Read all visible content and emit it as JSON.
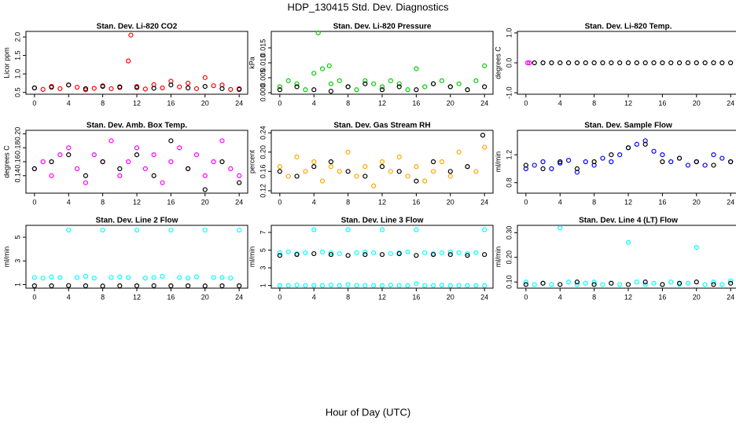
{
  "title": "HDP_130415  Std. Dev. Diagnostics",
  "xlabel": "Hour of Day (UTC)",
  "chart_data": [
    {
      "type": "scatter",
      "title": "Stan. Dev. Li-820 CO2",
      "ylabel": "Licor ppm",
      "xlim": [
        -1,
        25
      ],
      "xticks": [
        0,
        4,
        8,
        12,
        16,
        20,
        24
      ],
      "ylim": [
        0.45,
        2.15
      ],
      "yticks": [
        0.5,
        {
          "value": 1,
          "label": "1.0"
        },
        1.5,
        {
          "value": 2,
          "label": "2.0"
        }
      ],
      "series": [
        {
          "color": "#ff0000",
          "x": [
            0,
            1,
            2,
            3,
            4,
            5,
            6,
            7,
            8,
            9,
            10,
            11,
            11.3,
            12,
            13,
            14,
            15,
            16,
            17,
            18,
            19,
            20,
            21,
            22,
            23,
            24
          ],
          "values": [
            0.62,
            0.58,
            0.66,
            0.6,
            0.7,
            0.64,
            0.57,
            0.61,
            0.68,
            0.6,
            0.63,
            1.35,
            2.05,
            0.66,
            0.59,
            0.71,
            0.62,
            0.8,
            0.65,
            0.75,
            0.6,
            0.9,
            0.68,
            0.7,
            0.58,
            0.6
          ]
        },
        {
          "color": "#000000",
          "x": [
            0,
            2,
            4,
            6,
            8,
            10,
            12,
            14,
            16,
            18,
            20,
            22,
            24
          ],
          "values": [
            0.62,
            0.64,
            0.7,
            0.6,
            0.66,
            0.65,
            0.63,
            0.61,
            0.7,
            0.62,
            0.66,
            0.6,
            0.58
          ]
        }
      ]
    },
    {
      "type": "scatter",
      "title": "Stan. Dev. Li-820 Pressure",
      "ylabel": "kPa",
      "xlim": [
        -1,
        25
      ],
      "xticks": [
        0,
        4,
        8,
        12,
        16,
        20,
        24
      ],
      "ylim": [
        -0.0005,
        0.0205
      ],
      "yticks": [
        {
          "value": 0,
          "label": "0.000"
        },
        {
          "value": 0.005,
          "label": "0.005"
        },
        {
          "value": 0.01,
          "label": "0.010"
        },
        {
          "value": 0.015,
          "label": "0.015"
        }
      ],
      "series": [
        {
          "color": "#00cc00",
          "x": [
            0,
            1,
            2,
            3,
            4,
            4.5,
            5,
            5.8,
            6,
            7,
            8,
            9,
            10,
            11,
            12,
            13,
            14,
            15,
            16,
            17,
            18,
            19,
            20,
            21,
            22,
            23,
            24
          ],
          "values": [
            0.002,
            0.004,
            0.003,
            0.001,
            0.0065,
            0.02,
            0.008,
            0.009,
            0.003,
            0.004,
            0.002,
            0.001,
            0.004,
            0.003,
            0.002,
            0.004,
            0.003,
            0.001,
            0.008,
            0.002,
            0.003,
            0.004,
            0.002,
            0.003,
            0.001,
            0.004,
            0.009
          ]
        },
        {
          "color": "#000000",
          "x": [
            0,
            2,
            4,
            6,
            8,
            10,
            12,
            14,
            16,
            18,
            20,
            22,
            24
          ],
          "values": [
            0.001,
            0.002,
            0.001,
            0.0005,
            0.002,
            0.003,
            0.001,
            0.002,
            0.001,
            0.003,
            0.002,
            0.001,
            0.002
          ]
        }
      ]
    },
    {
      "type": "scatter",
      "title": "Stan. Dev. Li-820 Temp.",
      "ylabel": "degrees C",
      "xlim": [
        -1,
        25
      ],
      "xticks": [
        0,
        4,
        8,
        12,
        16,
        20,
        24
      ],
      "ylim": [
        -1.05,
        1.05
      ],
      "yticks": [
        {
          "value": -1,
          "label": "-1.0"
        },
        {
          "value": 0,
          "label": "0.0"
        },
        {
          "value": 1,
          "label": "1.0"
        }
      ],
      "series": [
        {
          "color": "#ff00ff",
          "x": [
            0.2,
            0.4
          ],
          "values": [
            0,
            0
          ]
        },
        {
          "color": "#000000",
          "x": [
            1,
            2,
            3,
            4,
            5,
            6,
            7,
            8,
            9,
            10,
            11,
            12,
            13,
            14,
            15,
            16,
            17,
            18,
            19,
            20,
            21,
            22,
            23,
            24
          ],
          "values": [
            0,
            0,
            0,
            0,
            0,
            0,
            0,
            0,
            0,
            0,
            0,
            0,
            0,
            0,
            0,
            0,
            0,
            0,
            0,
            0,
            0,
            0,
            0,
            0
          ]
        }
      ]
    },
    {
      "type": "scatter",
      "title": "Stan. Dev. Amb. Box Temp.",
      "ylabel": "degrees C",
      "xlim": [
        -1,
        25
      ],
      "xticks": [
        0,
        4,
        8,
        12,
        16,
        20,
        24
      ],
      "ylim": [
        0.115,
        0.205
      ],
      "yticks": [
        0.14,
        0.16,
        0.18,
        {
          "value": 0.2,
          "label": "0.20"
        }
      ],
      "series": [
        {
          "color": "#ff00ff",
          "x": [
            0,
            1,
            2,
            3,
            4,
            5,
            6,
            7,
            8,
            9,
            10,
            11,
            12,
            13,
            14,
            15,
            16,
            17,
            18,
            19,
            20,
            21,
            22,
            23,
            24
          ],
          "values": [
            0.15,
            0.16,
            0.14,
            0.17,
            0.18,
            0.15,
            0.13,
            0.17,
            0.16,
            0.19,
            0.14,
            0.16,
            0.18,
            0.15,
            0.17,
            0.13,
            0.16,
            0.18,
            0.15,
            0.17,
            0.14,
            0.16,
            0.19,
            0.15,
            0.14
          ]
        },
        {
          "color": "#000000",
          "x": [
            0,
            2,
            4,
            6,
            8,
            10,
            12,
            14,
            16,
            18,
            20,
            22,
            24
          ],
          "values": [
            0.15,
            0.16,
            0.17,
            0.14,
            0.16,
            0.15,
            0.17,
            0.14,
            0.19,
            0.15,
            0.12,
            0.16,
            0.13
          ]
        }
      ]
    },
    {
      "type": "scatter",
      "title": "Stan. Dev. Gas Stream RH",
      "ylabel": "percent",
      "xlim": [
        -1,
        25
      ],
      "xticks": [
        0,
        4,
        8,
        12,
        16,
        20,
        24
      ],
      "ylim": [
        0.115,
        0.245
      ],
      "yticks": [
        0.12,
        0.16,
        {
          "value": 0.2,
          "label": "0.20"
        },
        0.24
      ],
      "series": [
        {
          "color": "#ffa500",
          "x": [
            0,
            1,
            2,
            3,
            4,
            5,
            6,
            7,
            8,
            9,
            10,
            11,
            12,
            13,
            14,
            15,
            16,
            17,
            18,
            19,
            20,
            21,
            22,
            23,
            24
          ],
          "values": [
            0.17,
            0.15,
            0.19,
            0.16,
            0.18,
            0.14,
            0.17,
            0.16,
            0.2,
            0.15,
            0.17,
            0.13,
            0.18,
            0.16,
            0.19,
            0.15,
            0.17,
            0.14,
            0.16,
            0.18,
            0.15,
            0.2,
            0.17,
            0.16,
            0.21
          ]
        },
        {
          "color": "#000000",
          "x": [
            0,
            2,
            4,
            6,
            8,
            10,
            12,
            14,
            16,
            18,
            20,
            22,
            23.8
          ],
          "values": [
            0.16,
            0.15,
            0.17,
            0.18,
            0.16,
            0.15,
            0.17,
            0.16,
            0.14,
            0.18,
            0.16,
            0.17,
            0.235
          ]
        }
      ]
    },
    {
      "type": "scatter",
      "title": "Stan. Dev. Sample Flow",
      "ylabel": "ml/min",
      "xlim": [
        -1,
        25
      ],
      "xticks": [
        0,
        4,
        8,
        12,
        16,
        20,
        24
      ],
      "ylim": [
        0.65,
        1.55
      ],
      "yticks": [
        0.8,
        1.2
      ],
      "series": [
        {
          "color": "#0000ff",
          "x": [
            0,
            1,
            2,
            3,
            4,
            5,
            6,
            7,
            8,
            9,
            10,
            11,
            12,
            13,
            14,
            15,
            16,
            17,
            18,
            19,
            20,
            21,
            22,
            23,
            24
          ],
          "values": [
            1.0,
            1.05,
            1.1,
            1.0,
            1.08,
            1.12,
            0.95,
            1.1,
            1.05,
            1.15,
            1.1,
            1.2,
            1.3,
            1.35,
            1.4,
            1.25,
            1.2,
            1.1,
            1.15,
            1.05,
            1.1,
            1.05,
            1.2,
            1.15,
            1.1
          ]
        },
        {
          "color": "#000000",
          "x": [
            0,
            2,
            4,
            6,
            8,
            10,
            12,
            14,
            16,
            18,
            20,
            22,
            24
          ],
          "values": [
            1.05,
            1.0,
            1.1,
            1.0,
            1.1,
            1.2,
            1.3,
            1.35,
            1.1,
            1.15,
            1.1,
            1.05,
            1.1
          ]
        }
      ]
    },
    {
      "type": "scatter",
      "title": "Stan. Dev. Line 2 Flow",
      "ylabel": "ml/min",
      "xlim": [
        -1,
        25
      ],
      "xticks": [
        0,
        4,
        8,
        12,
        16,
        20,
        24
      ],
      "ylim": [
        0.7,
        6.0
      ],
      "yticks": [
        1,
        3,
        5
      ],
      "series": [
        {
          "color": "#00ffff",
          "x": [
            0,
            1,
            2,
            3,
            4,
            5,
            6,
            7,
            8,
            9,
            10,
            11,
            12,
            13,
            14,
            15,
            16,
            17,
            18,
            19,
            20,
            21,
            22,
            23,
            24
          ],
          "values": [
            1.6,
            1.55,
            1.65,
            1.6,
            5.6,
            1.6,
            1.7,
            1.55,
            5.6,
            1.6,
            1.65,
            1.6,
            5.6,
            1.55,
            1.6,
            1.7,
            5.6,
            1.6,
            1.55,
            1.65,
            5.6,
            1.6,
            1.6,
            1.55,
            5.6
          ]
        },
        {
          "color": "#000000",
          "x": [
            0,
            2,
            4,
            6,
            8,
            10,
            12,
            14,
            16,
            18,
            20,
            22,
            24
          ],
          "values": [
            0.9,
            0.9,
            0.92,
            0.9,
            0.88,
            0.9,
            0.9,
            0.91,
            0.9,
            0.9,
            0.89,
            0.9,
            0.9
          ]
        }
      ]
    },
    {
      "type": "scatter",
      "title": "Stan. Dev. Line 3 Flow",
      "ylabel": "ml/min",
      "xlim": [
        -1,
        25
      ],
      "xticks": [
        0,
        4,
        8,
        12,
        16,
        20,
        24
      ],
      "ylim": [
        0.7,
        7.8
      ],
      "yticks": [
        1,
        3,
        5,
        7
      ],
      "series": [
        {
          "color": "#00ffff",
          "x": [
            0,
            1,
            2,
            3,
            4,
            5,
            6,
            7,
            8,
            9,
            10,
            11,
            12,
            13,
            14,
            15,
            16,
            17,
            18,
            19,
            20,
            21,
            22,
            23,
            24
          ],
          "values": [
            1.0,
            1.0,
            1.05,
            1.0,
            1.0,
            1.0,
            1.05,
            1.0,
            1.1,
            1.0,
            1.0,
            1.0,
            1.0,
            1.05,
            1.0,
            1.0,
            1.2,
            1.0,
            1.0,
            1.05,
            1.0,
            1.0,
            1.0,
            1.0,
            1.0
          ]
        },
        {
          "color": "#00ffff",
          "x": [
            0,
            1,
            2,
            3,
            4,
            5,
            6,
            7,
            8,
            9,
            10,
            11,
            12,
            13,
            14,
            15,
            16,
            17,
            18,
            19,
            20,
            21,
            22,
            23,
            24
          ],
          "values": [
            4.7,
            4.8,
            4.6,
            4.7,
            7.3,
            4.8,
            4.7,
            4.6,
            7.3,
            4.7,
            4.8,
            4.7,
            7.3,
            4.6,
            4.7,
            4.8,
            7.3,
            4.7,
            4.6,
            4.7,
            4.8,
            4.7,
            4.6,
            4.7,
            7.3
          ]
        },
        {
          "color": "#000000",
          "x": [
            0,
            2,
            4,
            6,
            8,
            10,
            12,
            14,
            16,
            18,
            20,
            22,
            24
          ],
          "values": [
            4.4,
            4.5,
            4.6,
            4.5,
            4.4,
            4.5,
            4.5,
            4.6,
            4.4,
            4.5,
            4.5,
            4.4,
            4.5
          ]
        }
      ]
    },
    {
      "type": "scatter",
      "title": "Stan. Dev. Line 4 (LT) Flow",
      "ylabel": "ml/min",
      "xlim": [
        -1,
        25
      ],
      "xticks": [
        0,
        4,
        8,
        12,
        16,
        20,
        24
      ],
      "ylim": [
        0.075,
        0.33
      ],
      "yticks": [
        {
          "value": 0.1,
          "label": "0.10"
        },
        {
          "value": 0.2,
          "label": "0.20"
        },
        {
          "value": 0.3,
          "label": "0.30"
        }
      ],
      "series": [
        {
          "color": "#00ffff",
          "x": [
            0,
            1,
            2,
            3,
            4,
            5,
            6,
            7,
            8,
            9,
            10,
            11,
            12,
            13,
            14,
            15,
            16,
            17,
            18,
            19,
            20,
            21,
            22,
            23,
            24
          ],
          "values": [
            0.1,
            0.09,
            0.095,
            0.09,
            0.32,
            0.1,
            0.09,
            0.095,
            0.1,
            0.09,
            0.095,
            0.09,
            0.26,
            0.1,
            0.09,
            0.095,
            0.09,
            0.1,
            0.09,
            0.095,
            0.24,
            0.09,
            0.1,
            0.09,
            0.105
          ]
        },
        {
          "color": "#000000",
          "x": [
            0,
            2,
            4,
            6,
            8,
            10,
            12,
            14,
            16,
            18,
            20,
            22,
            24
          ],
          "values": [
            0.09,
            0.095,
            0.09,
            0.1,
            0.09,
            0.095,
            0.09,
            0.1,
            0.09,
            0.095,
            0.1,
            0.09,
            0.095
          ]
        }
      ]
    }
  ]
}
